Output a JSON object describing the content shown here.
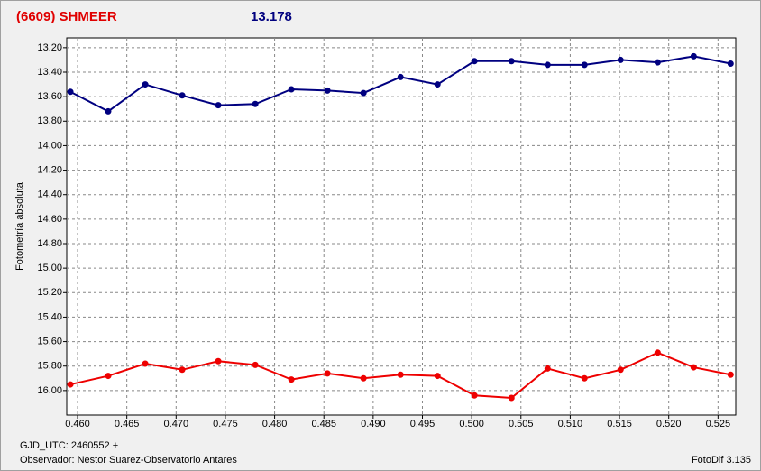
{
  "chart_data": {
    "type": "line",
    "title": "(6609) SHMEER",
    "subtitle": "13.178",
    "y_label": "Fotometría absoluta",
    "x_label": "GJD_UTC: 2460552 +",
    "footer_left": "Observador: Nestor Suarez-Observatorio Antares",
    "footer_right": "FotoDif 3.135",
    "x": [
      0.45927,
      0.46311,
      0.46687,
      0.47062,
      0.47428,
      0.47804,
      0.4817,
      0.48536,
      0.48902,
      0.49278,
      0.49653,
      0.50028,
      0.50404,
      0.5077,
      0.51145,
      0.51511,
      0.51887,
      0.52253,
      0.52628
    ],
    "series": [
      {
        "color": "#000080",
        "values": [
          13.56,
          13.72,
          13.5,
          13.59,
          13.67,
          13.66,
          13.54,
          13.55,
          13.57,
          13.44,
          13.5,
          13.31,
          13.31,
          13.34,
          13.34,
          13.3,
          13.32,
          13.27,
          13.33
        ]
      },
      {
        "color": "#ee0000",
        "values": [
          15.95,
          15.88,
          15.78,
          15.83,
          15.76,
          15.79,
          15.91,
          15.86,
          15.9,
          15.87,
          15.88,
          16.04,
          16.06,
          15.82,
          15.9,
          15.83,
          15.69,
          15.81,
          15.87
        ]
      }
    ],
    "xlim": [
      0.4589,
      0.5268
    ],
    "ylim": [
      13.12,
      16.2
    ],
    "y_inverted": true,
    "grid": true,
    "xticks": [
      {
        "value": 0.46,
        "label": "0.460"
      },
      {
        "value": 0.465,
        "label": "0.465"
      },
      {
        "value": 0.47,
        "label": "0.470"
      },
      {
        "value": 0.475,
        "label": "0.475"
      },
      {
        "value": 0.48,
        "label": "0.480"
      },
      {
        "value": 0.485,
        "label": "0.485"
      },
      {
        "value": 0.49,
        "label": "0.490"
      },
      {
        "value": 0.495,
        "label": "0.495"
      },
      {
        "value": 0.5,
        "label": "0.500"
      },
      {
        "value": 0.505,
        "label": "0.505"
      },
      {
        "value": 0.51,
        "label": "0.510"
      },
      {
        "value": 0.515,
        "label": "0.515"
      },
      {
        "value": 0.52,
        "label": "0.520"
      },
      {
        "value": 0.525,
        "label": "0.525"
      }
    ],
    "yticks": [
      {
        "value": 13.2,
        "label": "13.20"
      },
      {
        "value": 13.4,
        "label": "13.40"
      },
      {
        "value": 13.6,
        "label": "13.60"
      },
      {
        "value": 13.8,
        "label": "13.80"
      },
      {
        "value": 14.0,
        "label": "14.00"
      },
      {
        "value": 14.2,
        "label": "14.20"
      },
      {
        "value": 14.4,
        "label": "14.40"
      },
      {
        "value": 14.6,
        "label": "14.60"
      },
      {
        "value": 14.8,
        "label": "14.80"
      },
      {
        "value": 15.0,
        "label": "15.00"
      },
      {
        "value": 15.2,
        "label": "15.20"
      },
      {
        "value": 15.4,
        "label": "15.40"
      },
      {
        "value": 15.6,
        "label": "15.60"
      },
      {
        "value": 15.8,
        "label": "15.80"
      },
      {
        "value": 16.0,
        "label": "16.00"
      }
    ]
  }
}
